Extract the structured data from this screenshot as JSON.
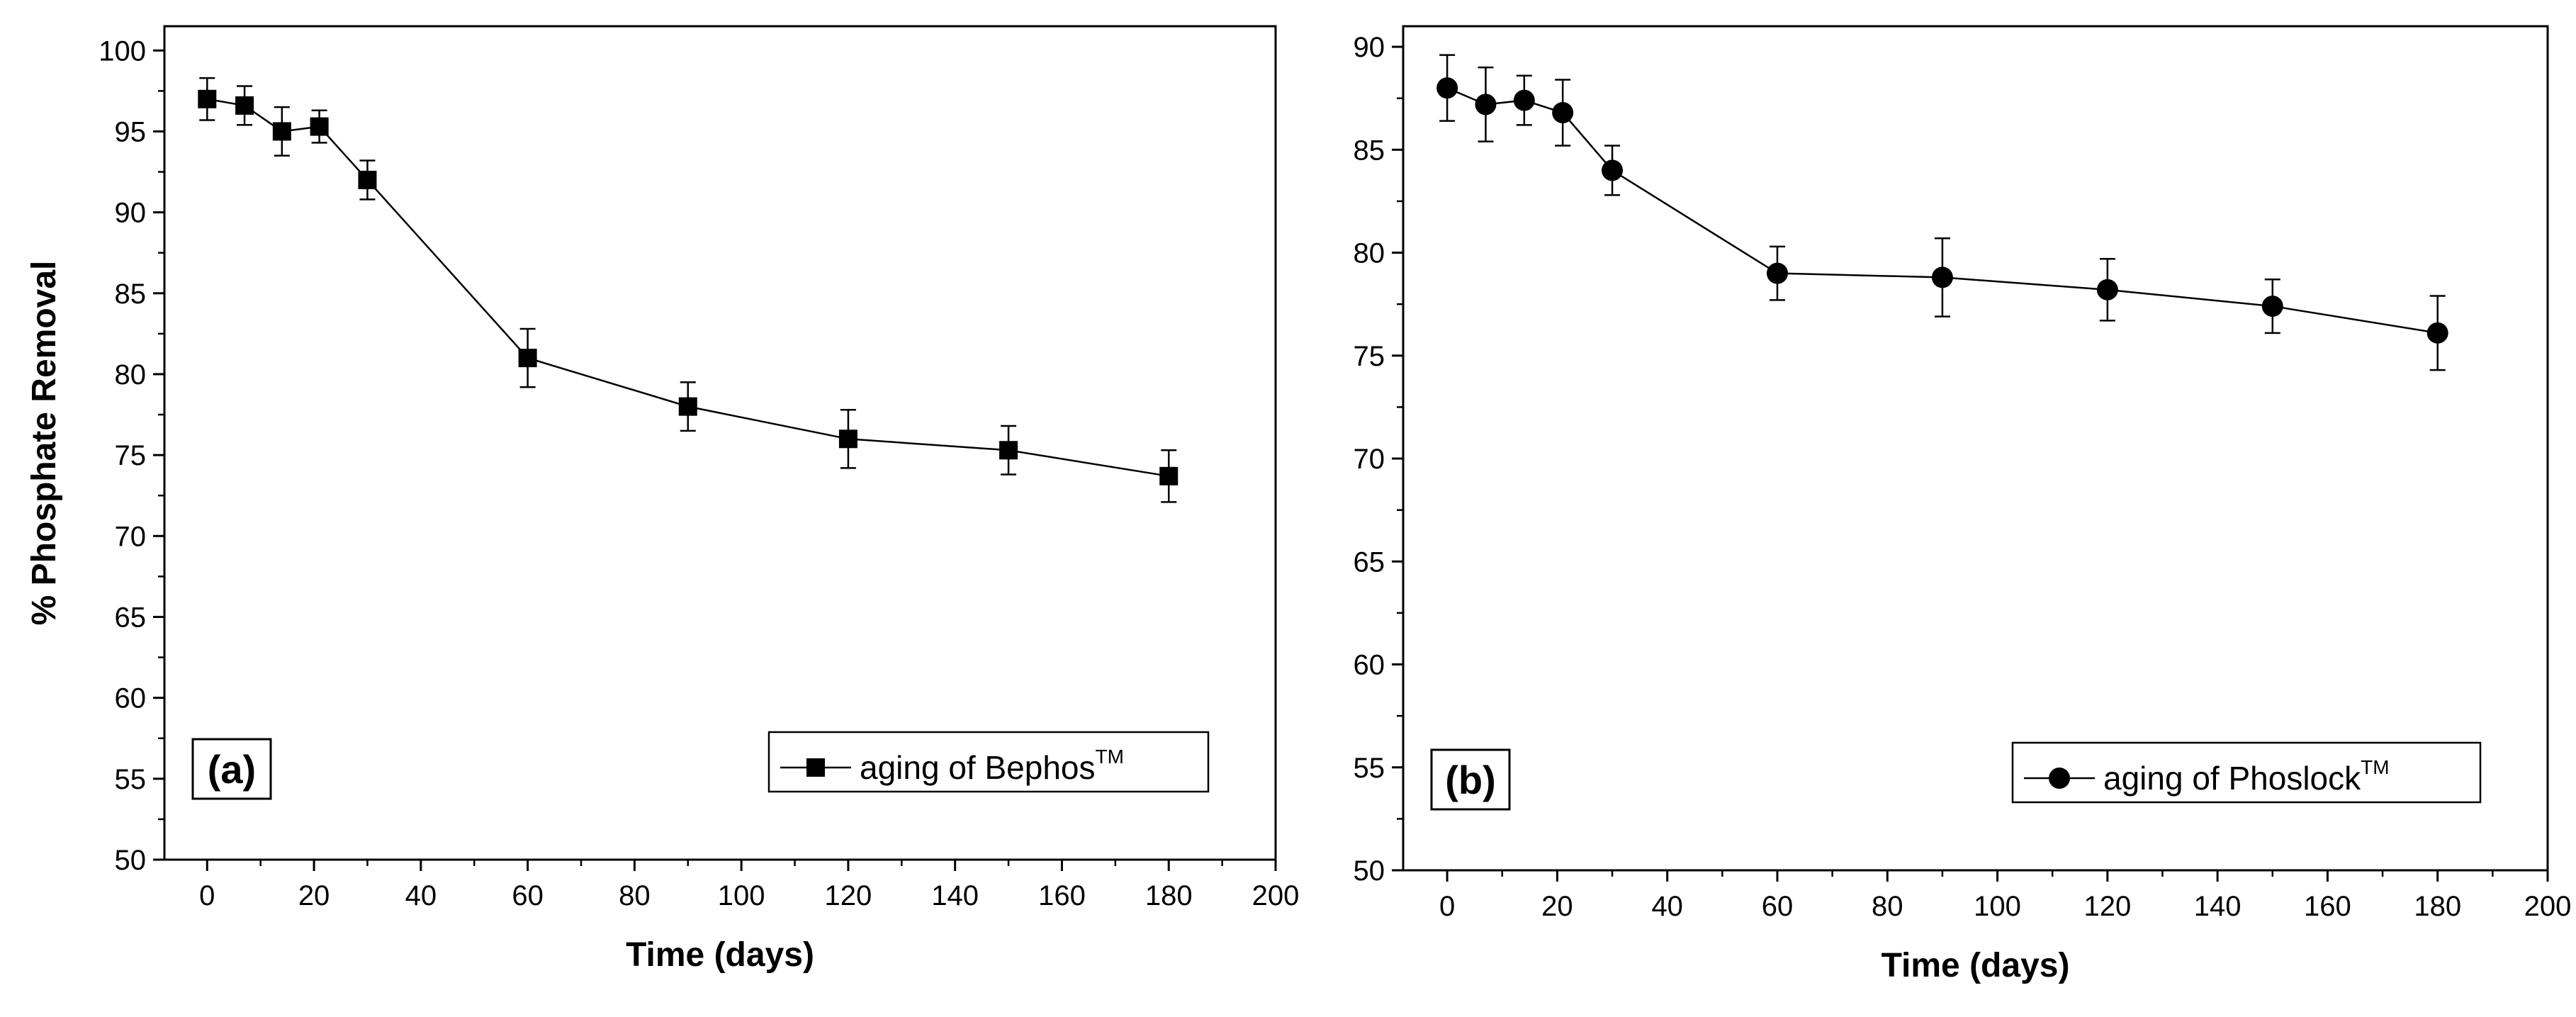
{
  "chart_data": [
    {
      "type": "line",
      "panel_label": "(a)",
      "xlabel": "Time (days)",
      "ylabel": "% Phosphate Removal",
      "xlim": [
        -8,
        200
      ],
      "ylim": [
        50,
        101.5
      ],
      "xticks": [
        0,
        20,
        40,
        60,
        80,
        100,
        120,
        140,
        160,
        180,
        200
      ],
      "yticks": [
        50,
        55,
        60,
        65,
        70,
        75,
        80,
        85,
        90,
        95,
        100
      ],
      "marker": "square",
      "legend_position": "bottom-right",
      "series": [
        {
          "name": "aging of Bephos",
          "name_superscript": "TM",
          "x": [
            0,
            7,
            14,
            21,
            30,
            60,
            90,
            120,
            150,
            180
          ],
          "y": [
            97.0,
            96.6,
            95.0,
            95.3,
            92.0,
            81.0,
            78.0,
            76.0,
            75.3,
            73.7
          ],
          "err": [
            1.3,
            1.2,
            1.5,
            1.0,
            1.2,
            1.8,
            1.5,
            1.8,
            1.5,
            1.6
          ]
        }
      ]
    },
    {
      "type": "line",
      "panel_label": "(b)",
      "xlabel": "Time (days)",
      "ylabel": "",
      "xlim": [
        -8,
        200
      ],
      "ylim": [
        50,
        91
      ],
      "xticks": [
        0,
        20,
        40,
        60,
        80,
        100,
        120,
        140,
        160,
        180,
        200
      ],
      "yticks": [
        50,
        55,
        60,
        65,
        70,
        75,
        80,
        85,
        90
      ],
      "marker": "circle",
      "legend_position": "bottom-right",
      "series": [
        {
          "name": "aging of Phoslock",
          "name_superscript": "TM",
          "x": [
            0,
            7,
            14,
            21,
            30,
            60,
            90,
            120,
            150,
            180
          ],
          "y": [
            88.0,
            87.2,
            87.4,
            86.8,
            84.0,
            79.0,
            78.8,
            78.2,
            77.4,
            76.1
          ],
          "err": [
            1.6,
            1.8,
            1.2,
            1.6,
            1.2,
            1.3,
            1.9,
            1.5,
            1.3,
            1.8
          ]
        }
      ]
    }
  ]
}
